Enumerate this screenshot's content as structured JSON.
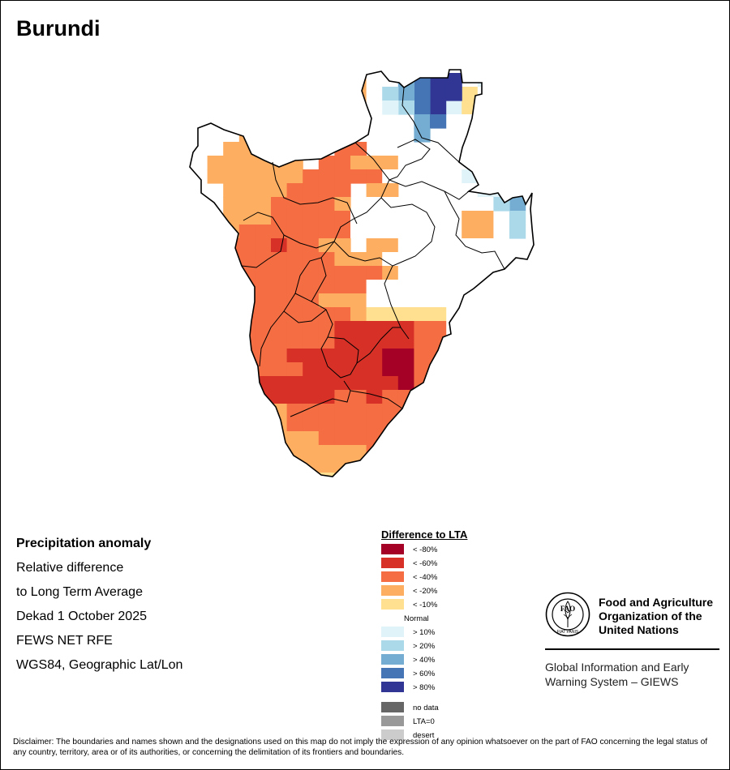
{
  "map": {
    "title": "Burundi",
    "cell_grid": [
      "          3.......1   ",
      "          3....112.   ",
      "        3 3....112.   ",
      "        3 ........   ",
      "   33   4 ........   ",
      "  33333  44  ........",
      " 333333 44333........",
      " 33333344444.  ..11.1",
      "  33334444 33   ..11.",
      "  33344443 ...  .....",
      "  33344444....  .33..",
      "  34444444.. .. .33..",
      "  44454433 33.. .....",
      "  4444444333.......  ",
      "  44444444443.. ..   ",
      "  444444444........  ",
      "  444444333.....     ",
      "  44444444322222     ",
      "  54444445555544     ",
      "  54444445555544 4   ",
      "  44445555556644     ",
      "  44444555556644     ",
      "   55555555556444    ",
      "   35555544544444    ",
      "    3344444444444    ",
      "     3444444444      ",
      "     33344443        ",
      "     33333344        ",
      "      3333333        ",
      "      22233          "
    ]
  },
  "info": {
    "line1": "Precipitation anomaly",
    "line2": "Relative difference",
    "line3": "to Long Term Average",
    "line4": "Dekad 1 October 2025",
    "line5": "FEWS NET RFE",
    "line6": "WGS84, Geographic Lat/Lon"
  },
  "legend": {
    "title": "Difference to LTA",
    "items": [
      {
        "label": "< -80%",
        "color": "#a50026"
      },
      {
        "label": "< -60%",
        "color": "#d73027"
      },
      {
        "label": "< -40%",
        "color": "#f46d43"
      },
      {
        "label": "< -20%",
        "color": "#fdae61"
      },
      {
        "label": "< -10%",
        "color": "#fee090"
      },
      {
        "label": "Normal",
        "color": "#ffffff"
      },
      {
        "label": "> 10%",
        "color": "#e0f3f8"
      },
      {
        "label": "> 20%",
        "color": "#abd9e9"
      },
      {
        "label": "> 40%",
        "color": "#74add1"
      },
      {
        "label": "> 60%",
        "color": "#4575b4"
      },
      {
        "label": "> 80%",
        "color": "#313695"
      }
    ],
    "extra": [
      {
        "label": "no data",
        "color": "#666666"
      },
      {
        "label": "LTA=0",
        "color": "#999999"
      },
      {
        "label": "desert",
        "color": "#cccccc"
      }
    ]
  },
  "fao": {
    "org_line1": "Food and Agriculture",
    "org_line2": "Organization of the",
    "org_line3": "United Nations",
    "giews_line1": "Global Information and Early",
    "giews_line2": "Warning System – GIEWS",
    "logo_text": "FAO",
    "motto": "FIAT PANIS"
  },
  "disclaimer": "Disclaimer: The boundaries and names shown and the designations used on this map do not imply the expression of any opinion whatsoever on the part of FAO concerning the legal status of any country, territory, area or of its authorities, or concerning the delimitation of its frontiers and boundaries."
}
